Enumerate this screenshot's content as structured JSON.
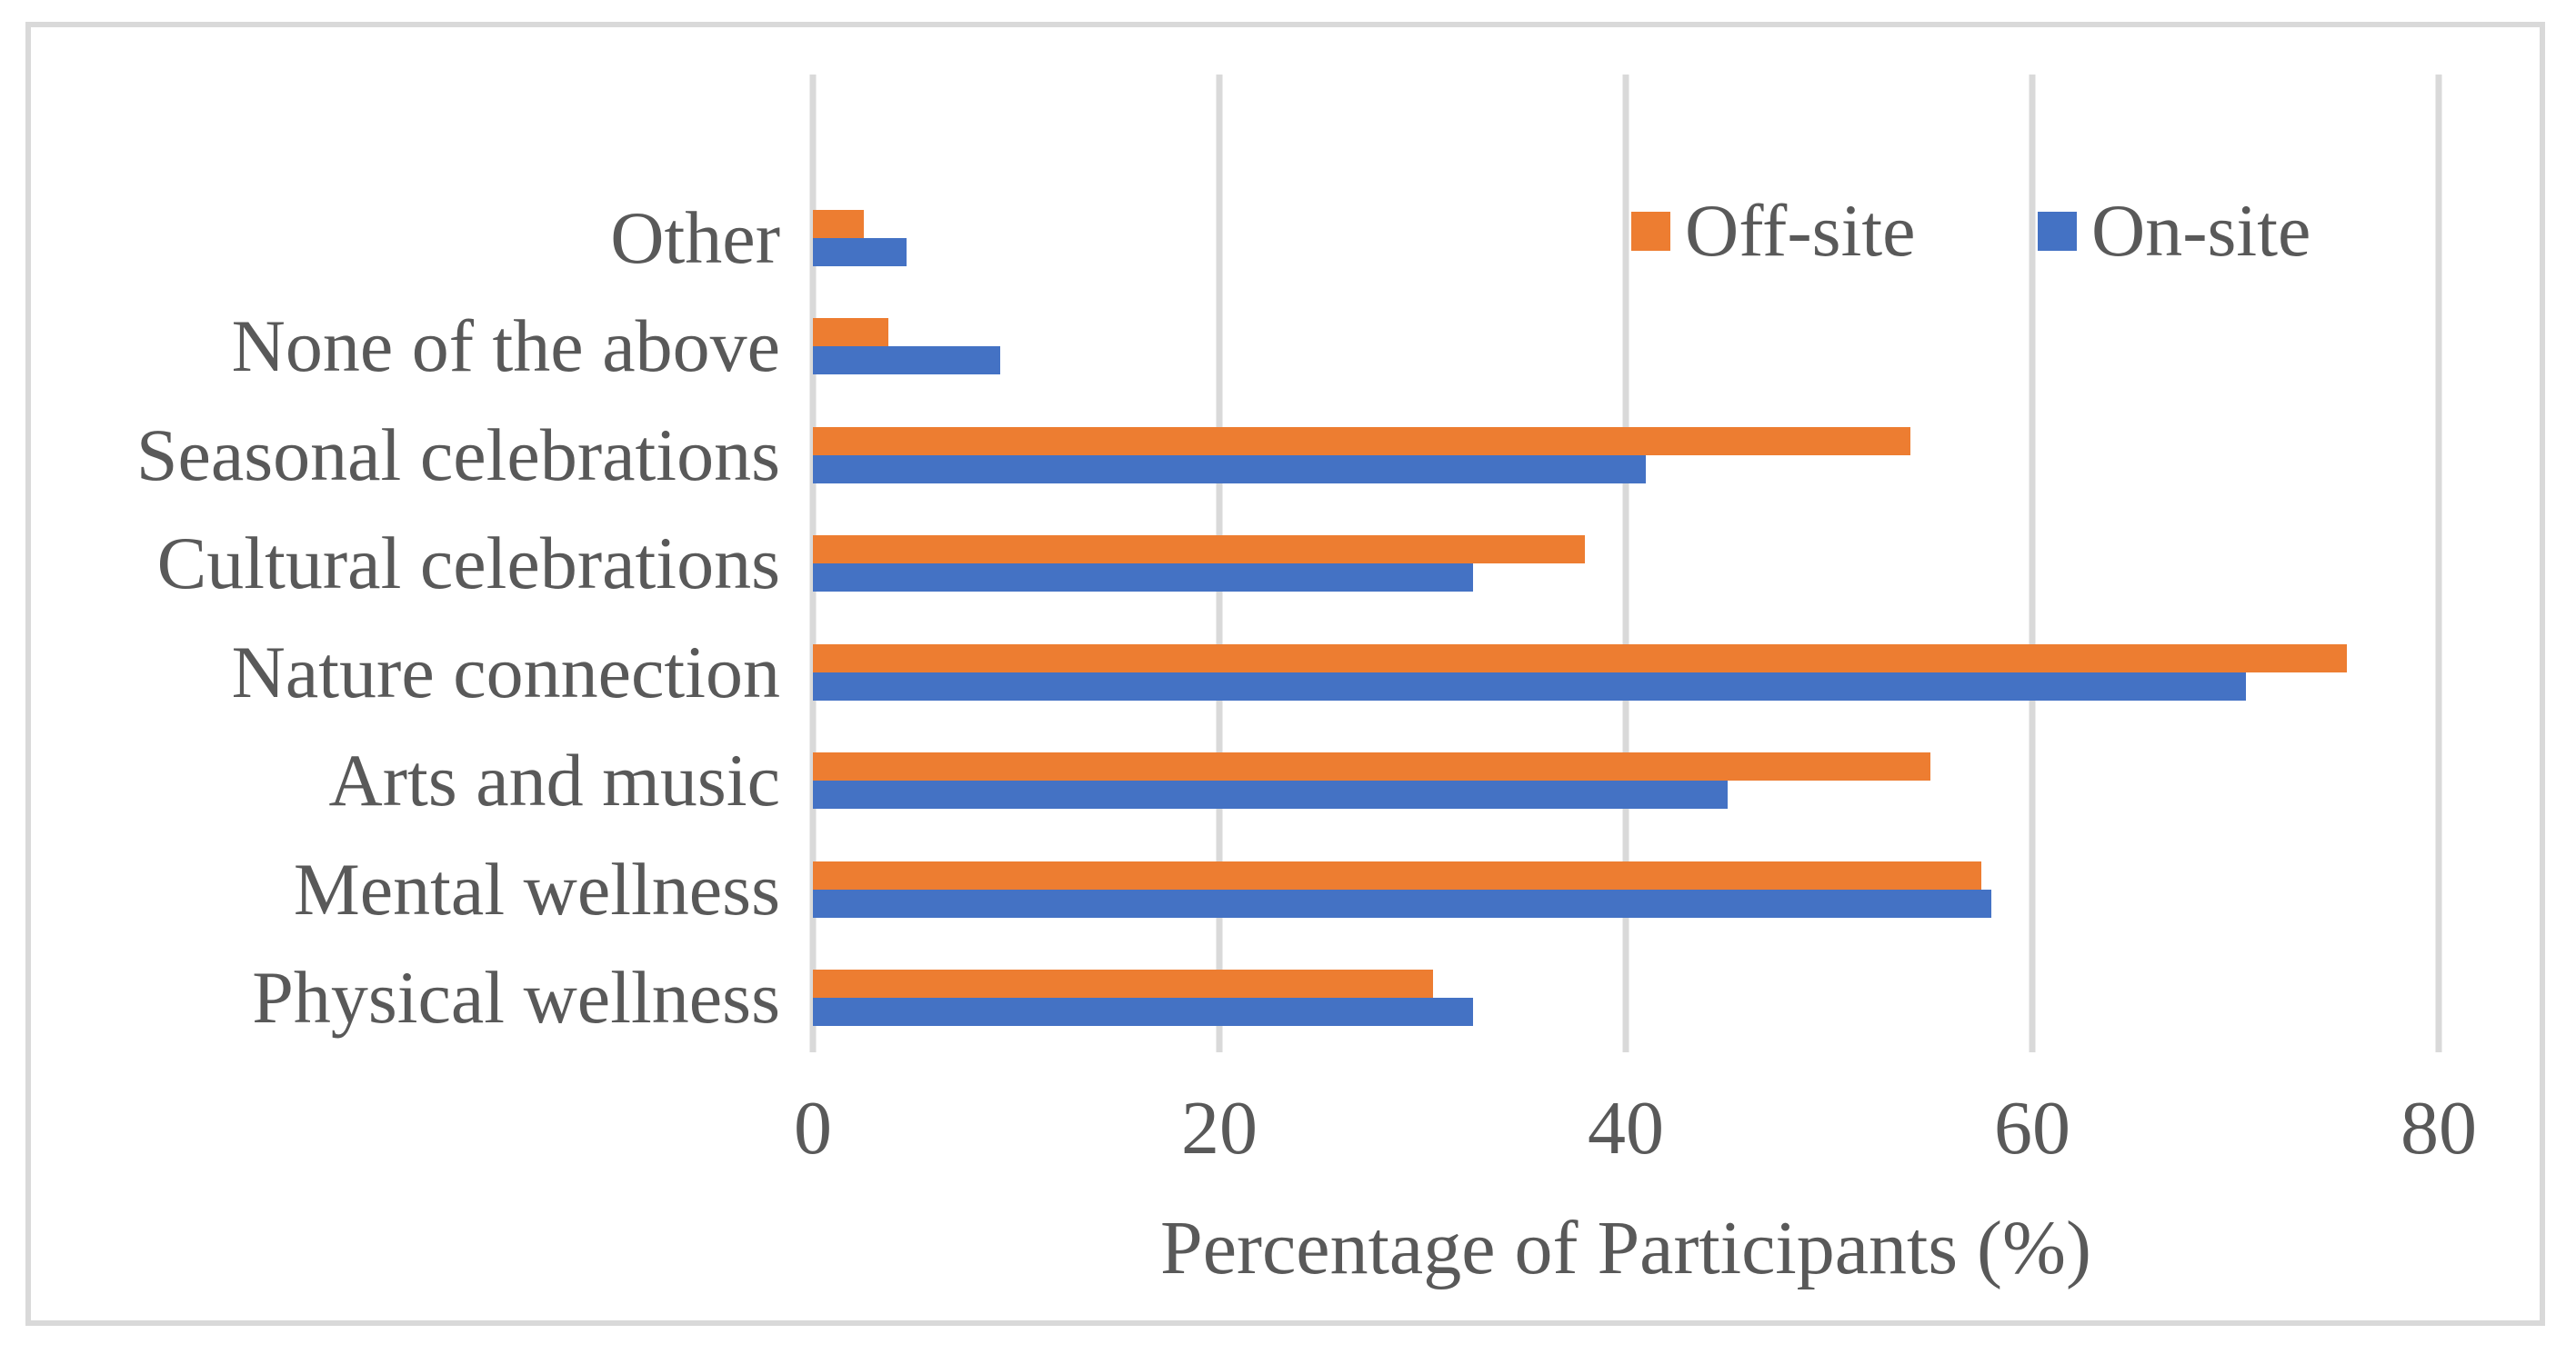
{
  "figure": {
    "background": "#FFFFFF",
    "border_color": "#D9D9D9",
    "text_color": "#595959",
    "gridline_color": "#D9D9D9"
  },
  "legend": {
    "items": [
      {
        "label": "Off-site",
        "color": "#ED7D31"
      },
      {
        "label": "On-site",
        "color": "#4472C4"
      }
    ]
  },
  "chart_data": {
    "type": "bar",
    "orientation": "horizontal",
    "title": "",
    "xlabel": "Percentage of Participants (%)",
    "ylabel": "",
    "xlim": [
      0,
      80
    ],
    "xticks": [
      0,
      20,
      40,
      60,
      80
    ],
    "grid": true,
    "legend_position": "top-right-inside",
    "categories": [
      "Other",
      "None of the above",
      "Seasonal celebrations",
      "Cultural celebrations",
      "Nature connection",
      "Arts and music",
      "Mental wellness",
      "Physical wellness"
    ],
    "series": [
      {
        "name": "Off-site",
        "color": "#ED7D31",
        "values": [
          2.5,
          3.7,
          54,
          38,
          75.5,
          55,
          57.5,
          30.5
        ]
      },
      {
        "name": "On-site",
        "color": "#4472C4",
        "values": [
          4.6,
          9.2,
          41,
          32.5,
          70.5,
          45,
          58,
          32.5
        ]
      }
    ]
  }
}
